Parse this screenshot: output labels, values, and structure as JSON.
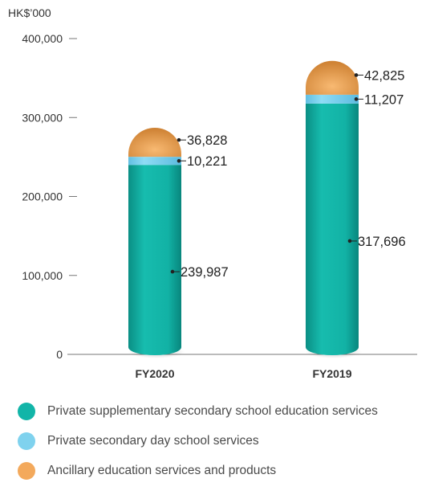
{
  "chart_data": {
    "type": "bar",
    "stacked": true,
    "title": "",
    "ylabel": "HK$’000",
    "xlabel": "",
    "ylim": [
      0,
      400000
    ],
    "yticks": [
      0,
      100000,
      200000,
      300000,
      400000
    ],
    "ytick_labels": [
      "0",
      "100,000",
      "200,000",
      "300,000",
      "400,000"
    ],
    "grid": false,
    "legend_position": "bottom",
    "categories": [
      "FY2020",
      "FY2019"
    ],
    "series": [
      {
        "name": "Private supplementary secondary school education services",
        "color": "#12b5a8",
        "values": [
          239987,
          317696
        ],
        "labels": [
          "239,987",
          "317,696"
        ]
      },
      {
        "name": "Private secondary day school services",
        "color": "#7fd2ee",
        "values": [
          10221,
          11207
        ],
        "labels": [
          "10,221",
          "11,207"
        ]
      },
      {
        "name": "Ancillary education services and products",
        "color": "#f3a95c",
        "values": [
          36828,
          42825
        ],
        "labels": [
          "36,828",
          "42,825"
        ]
      }
    ]
  }
}
